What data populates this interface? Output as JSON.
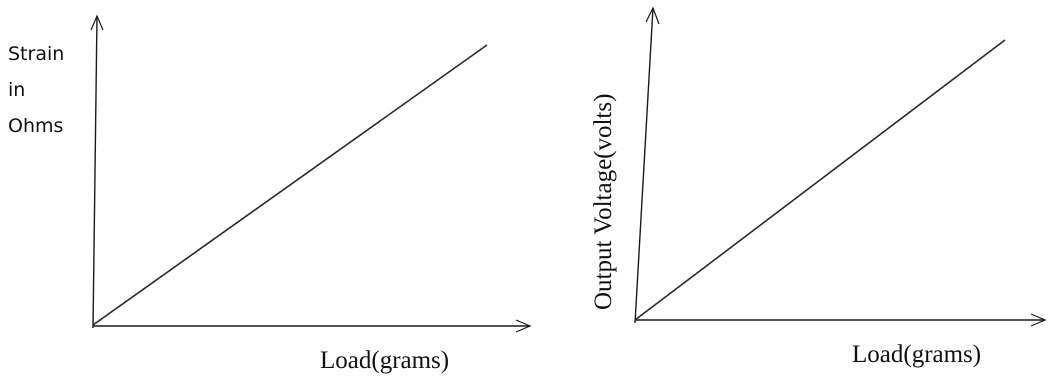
{
  "chart_data": [
    {
      "type": "line",
      "title": "",
      "xlabel": "Load(grams)",
      "ylabel_lines": [
        "Strain",
        "in",
        "Ohms"
      ],
      "series": [
        {
          "x": [
            0,
            1
          ],
          "y": [
            0,
            1
          ]
        }
      ],
      "grid": false,
      "ticks": false
    },
    {
      "type": "line",
      "title": "",
      "xlabel": "Load(grams)",
      "ylabel": "Output Voltage(volts)",
      "series": [
        {
          "x": [
            0,
            1
          ],
          "y": [
            0,
            1
          ]
        }
      ],
      "grid": false,
      "ticks": false
    }
  ]
}
